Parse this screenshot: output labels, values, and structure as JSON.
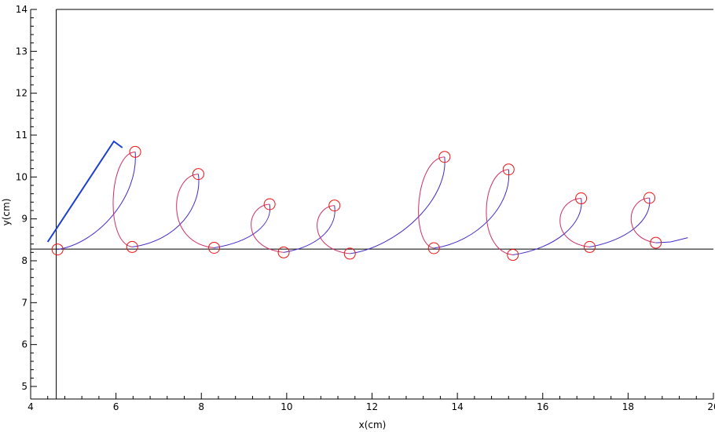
{
  "chart_data": {
    "type": "line",
    "title": "",
    "xlabel": "x(cm)",
    "ylabel": "y(cm)",
    "xlim": [
      4,
      20
    ],
    "ylim": [
      4.7,
      14
    ],
    "x_ticks": [
      4,
      6,
      8,
      10,
      12,
      14,
      16,
      18,
      20
    ],
    "y_ticks": [
      5,
      6,
      7,
      8,
      9,
      10,
      11,
      12,
      13,
      14
    ],
    "x_tick_labels": [
      "4",
      "6",
      "8",
      "10",
      "12",
      "14",
      "16",
      "18",
      "20"
    ],
    "y_tick_labels": [
      "5",
      "6",
      "7",
      "8",
      "9",
      "10",
      "11",
      "12",
      "13",
      "14"
    ],
    "grid": false,
    "reference_lines": {
      "vertical_x": 4.6,
      "horizontal_y": 8.28
    },
    "colors": {
      "curve_start": "#e0305a",
      "curve_end": "#3a2ad0",
      "marker": "#ee1111",
      "pointer": "#1a3fd0",
      "axes": "#000000"
    },
    "pointer_line": [
      [
        4.4,
        8.45
      ],
      [
        5.95,
        10.85
      ],
      [
        6.15,
        10.7
      ]
    ],
    "markers": [
      [
        4.63,
        8.27
      ],
      [
        6.45,
        10.6
      ],
      [
        6.38,
        8.33
      ],
      [
        7.93,
        10.07
      ],
      [
        8.3,
        8.31
      ],
      [
        9.6,
        9.35
      ],
      [
        9.93,
        8.2
      ],
      [
        11.12,
        9.32
      ],
      [
        11.48,
        8.17
      ],
      [
        13.7,
        10.48
      ],
      [
        13.45,
        8.3
      ],
      [
        15.2,
        10.18
      ],
      [
        15.3,
        8.14
      ],
      [
        16.9,
        9.49
      ],
      [
        17.1,
        8.33
      ],
      [
        18.5,
        9.5
      ],
      [
        18.65,
        8.43
      ]
    ],
    "segments": [
      {
        "start": [
          4.63,
          8.27
        ],
        "top": [
          6.45,
          10.6
        ],
        "end": [
          6.38,
          8.33
        ]
      },
      {
        "start": [
          6.38,
          8.33
        ],
        "top": [
          7.93,
          10.07
        ],
        "end": [
          8.3,
          8.31
        ]
      },
      {
        "start": [
          8.3,
          8.31
        ],
        "top": [
          9.6,
          9.35
        ],
        "end": [
          9.93,
          8.2
        ]
      },
      {
        "start": [
          9.93,
          8.2
        ],
        "top": [
          11.12,
          9.32
        ],
        "end": [
          11.48,
          8.17
        ]
      },
      {
        "start": [
          11.48,
          8.17
        ],
        "top": [
          13.7,
          10.48
        ],
        "end": [
          13.45,
          8.3
        ]
      },
      {
        "start": [
          13.45,
          8.3
        ],
        "top": [
          15.2,
          10.18
        ],
        "end": [
          15.3,
          8.14
        ]
      },
      {
        "start": [
          15.3,
          8.14
        ],
        "top": [
          16.9,
          9.49
        ],
        "end": [
          17.1,
          8.33
        ]
      },
      {
        "start": [
          17.1,
          8.33
        ],
        "top": [
          18.5,
          9.5
        ],
        "end": [
          18.65,
          8.43
        ]
      }
    ],
    "tail": [
      [
        18.65,
        8.43
      ],
      [
        19.0,
        8.45
      ],
      [
        19.4,
        8.55
      ]
    ]
  }
}
